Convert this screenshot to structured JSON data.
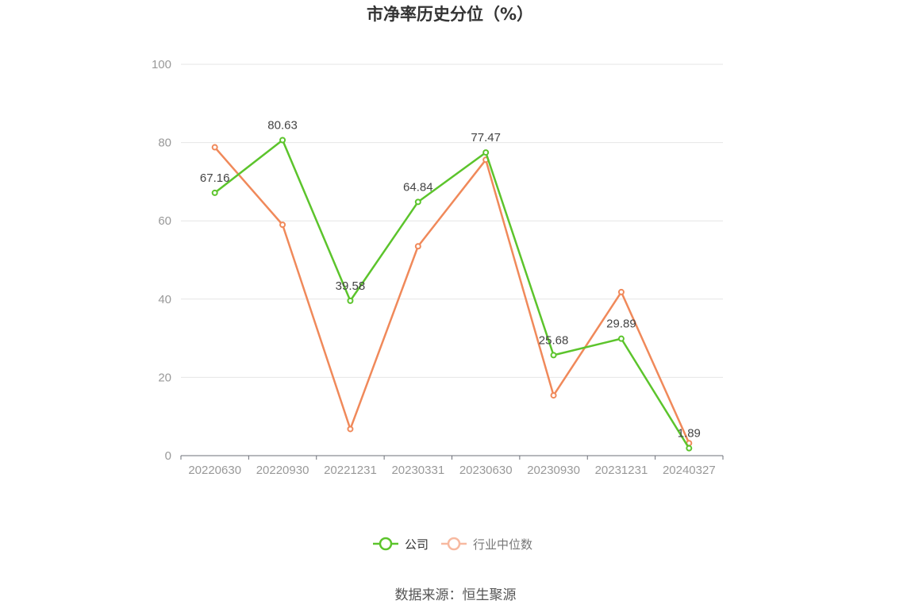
{
  "chart_data": {
    "type": "line",
    "title": "市净率历史分位（%）",
    "categories": [
      "20220630",
      "20220930",
      "20221231",
      "20230331",
      "20230630",
      "20230930",
      "20231231",
      "20240327"
    ],
    "ylim": [
      0,
      100
    ],
    "yticks": [
      0,
      20,
      40,
      60,
      80,
      100
    ],
    "grid": true,
    "legend_position": "bottom",
    "series": [
      {
        "name": "公司",
        "color": "#5cc42c",
        "values": [
          67.16,
          80.63,
          39.58,
          64.84,
          77.47,
          25.68,
          29.89,
          1.89
        ],
        "data_labels": [
          "67.16",
          "80.63",
          "39.58",
          "64.84",
          "77.47",
          "25.68",
          "29.89",
          "1.89"
        ]
      },
      {
        "name": "行业中位数",
        "color": "#f0895a",
        "legend_color": "#f7b9a0",
        "values": [
          78.8,
          59.0,
          6.8,
          53.5,
          75.6,
          15.4,
          41.8,
          3.2
        ]
      }
    ],
    "source": "数据来源：恒生聚源"
  }
}
